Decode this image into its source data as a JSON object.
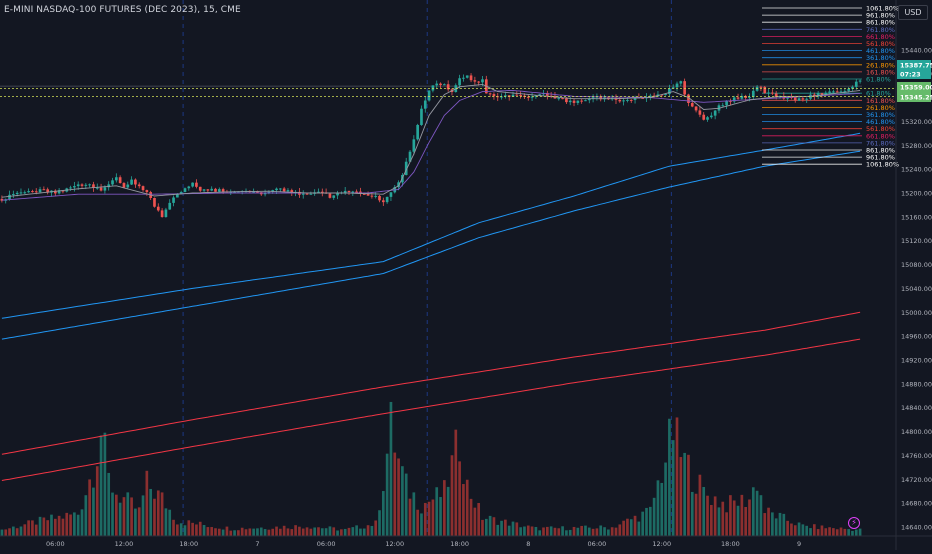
{
  "header": {
    "title": "E-MINI NASDAQ-100 FUTURES (DEC 2023), 15, CME",
    "currency": "USD"
  },
  "colors": {
    "background": "#131722",
    "grid_session": "#2962ff",
    "candle_up": "#26a69a",
    "candle_down": "#ef5350",
    "volume_up": "#1d6b64",
    "volume_down": "#8c2f2f",
    "ema_fast": "#9598a1",
    "ema_mid": "#7e57c2",
    "ma_blue": "#2196f3",
    "ma_red": "#f23645"
  },
  "chart_data": {
    "type": "candlestick",
    "y_axis_ticks": [
      "15440.00",
      "15400.00",
      "15360.00",
      "15320.00",
      "15280.00",
      "15240.00",
      "15200.00",
      "15160.00",
      "15120.00",
      "15080.00",
      "15040.00",
      "15000.00",
      "14960.00",
      "14920.00",
      "14880.00",
      "14840.00",
      "14800.00",
      "14760.00",
      "14720.00",
      "14680.00",
      "14640.00"
    ],
    "ylim": [
      14625,
      15490
    ],
    "x_axis_ticks": [
      "06:00",
      "12:00",
      "18:00",
      "7",
      "06:00",
      "12:00",
      "18:00",
      "8",
      "06:00",
      "12:00",
      "18:00",
      "9"
    ],
    "price_labels": [
      {
        "text": "15387.75",
        "color": "#26a69a"
      },
      {
        "text": "07:23",
        "color": "#26a69a"
      },
      {
        "text": "15359.00",
        "color": "#66bb6a"
      },
      {
        "text": "15345.25",
        "color": "#66bb6a"
      }
    ],
    "fib_levels": [
      {
        "label": "1061.80%",
        "color": "#ffffff"
      },
      {
        "label": "961.80%",
        "color": "#ffffff"
      },
      {
        "label": "861.80%",
        "color": "#ffffff"
      },
      {
        "label": "761.80%",
        "color": "#5c6bc0"
      },
      {
        "label": "661.80%",
        "color": "#e91e63"
      },
      {
        "label": "561.80%",
        "color": "#f44336"
      },
      {
        "label": "461.80%",
        "color": "#2196f3"
      },
      {
        "label": "361.80%",
        "color": "#2196f3"
      },
      {
        "label": "261.80%",
        "color": "#ff9800"
      },
      {
        "label": "161.80%",
        "color": "#ef5350"
      },
      {
        "label": "61.80%",
        "color": "#26a69a"
      },
      {
        "label": "0",
        "color": "#787b86"
      },
      {
        "label": "61.80%",
        "color": "#26a69a"
      },
      {
        "label": "161.80%",
        "color": "#ef5350"
      },
      {
        "label": "261.80%",
        "color": "#ff9800"
      },
      {
        "label": "361.80%",
        "color": "#2196f3"
      },
      {
        "label": "461.80%",
        "color": "#2196f3"
      },
      {
        "label": "561.80%",
        "color": "#f44336"
      },
      {
        "label": "661.80%",
        "color": "#e91e63"
      },
      {
        "label": "761.80%",
        "color": "#5c6bc0"
      },
      {
        "label": "861.80%",
        "color": "#ffffff"
      },
      {
        "label": "961.80%",
        "color": "#ffffff"
      },
      {
        "label": "1061.80%",
        "color": "#ffffff"
      }
    ],
    "price_path": [
      [
        0,
        15190
      ],
      [
        5,
        15200
      ],
      [
        10,
        15205
      ],
      [
        14,
        15200
      ],
      [
        18,
        15210
      ],
      [
        22,
        15215
      ],
      [
        26,
        15205
      ],
      [
        30,
        15225
      ],
      [
        32,
        15210
      ],
      [
        34,
        15220
      ],
      [
        38,
        15200
      ],
      [
        40,
        15180
      ],
      [
        42,
        15160
      ],
      [
        44,
        15185
      ],
      [
        46,
        15200
      ],
      [
        50,
        15215
      ],
      [
        52,
        15205
      ],
      [
        56,
        15205
      ],
      [
        60,
        15200
      ],
      [
        64,
        15205
      ],
      [
        68,
        15200
      ],
      [
        72,
        15208
      ],
      [
        76,
        15202
      ],
      [
        80,
        15198
      ],
      [
        84,
        15200
      ],
      [
        86,
        15192
      ],
      [
        90,
        15205
      ],
      [
        94,
        15200
      ],
      [
        98,
        15195
      ],
      [
        100,
        15185
      ],
      [
        102,
        15200
      ],
      [
        104,
        15215
      ],
      [
        106,
        15250
      ],
      [
        108,
        15290
      ],
      [
        110,
        15340
      ],
      [
        112,
        15370
      ],
      [
        114,
        15385
      ],
      [
        116,
        15380
      ],
      [
        118,
        15370
      ],
      [
        120,
        15390
      ],
      [
        122,
        15395
      ],
      [
        124,
        15385
      ],
      [
        126,
        15390
      ],
      [
        127,
        15365
      ],
      [
        130,
        15360
      ],
      [
        134,
        15362
      ],
      [
        138,
        15360
      ],
      [
        142,
        15365
      ],
      [
        146,
        15358
      ],
      [
        150,
        15352
      ],
      [
        154,
        15360
      ],
      [
        158,
        15358
      ],
      [
        162,
        15355
      ],
      [
        166,
        15360
      ],
      [
        170,
        15362
      ],
      [
        174,
        15365
      ],
      [
        176,
        15380
      ],
      [
        178,
        15385
      ],
      [
        180,
        15350
      ],
      [
        182,
        15340
      ],
      [
        184,
        15320
      ],
      [
        186,
        15330
      ],
      [
        188,
        15345
      ],
      [
        192,
        15358
      ],
      [
        196,
        15362
      ],
      [
        198,
        15380
      ],
      [
        200,
        15370
      ],
      [
        204,
        15360
      ],
      [
        208,
        15357
      ],
      [
        212,
        15362
      ],
      [
        216,
        15368
      ],
      [
        220,
        15372
      ],
      [
        222,
        15375
      ],
      [
        224,
        15385
      ],
      [
        225,
        15388
      ]
    ],
    "ema_fast": [
      [
        0,
        15193
      ],
      [
        10,
        15200
      ],
      [
        20,
        15207
      ],
      [
        30,
        15212
      ],
      [
        40,
        15195
      ],
      [
        50,
        15200
      ],
      [
        60,
        15202
      ],
      [
        70,
        15203
      ],
      [
        80,
        15200
      ],
      [
        90,
        15200
      ],
      [
        100,
        15198
      ],
      [
        104,
        15212
      ],
      [
        108,
        15265
      ],
      [
        112,
        15330
      ],
      [
        116,
        15365
      ],
      [
        120,
        15378
      ],
      [
        126,
        15382
      ],
      [
        130,
        15370
      ],
      [
        140,
        15364
      ],
      [
        150,
        15358
      ],
      [
        160,
        15358
      ],
      [
        170,
        15360
      ],
      [
        176,
        15370
      ],
      [
        180,
        15360
      ],
      [
        184,
        15340
      ],
      [
        188,
        15342
      ],
      [
        196,
        15356
      ],
      [
        204,
        15362
      ],
      [
        212,
        15362
      ],
      [
        220,
        15368
      ],
      [
        225,
        15372
      ]
    ],
    "ema_mid": [
      [
        0,
        15188
      ],
      [
        20,
        15198
      ],
      [
        40,
        15198
      ],
      [
        60,
        15200
      ],
      [
        80,
        15200
      ],
      [
        96,
        15200
      ],
      [
        104,
        15206
      ],
      [
        108,
        15235
      ],
      [
        112,
        15285
      ],
      [
        116,
        15330
      ],
      [
        120,
        15355
      ],
      [
        126,
        15370
      ],
      [
        134,
        15372
      ],
      [
        150,
        15362
      ],
      [
        170,
        15360
      ],
      [
        184,
        15352
      ],
      [
        200,
        15358
      ],
      [
        225,
        15367
      ]
    ],
    "ma_blue_1": [
      [
        0,
        14990
      ],
      [
        50,
        15040
      ],
      [
        100,
        15085
      ],
      [
        125,
        15150
      ],
      [
        150,
        15195
      ],
      [
        175,
        15245
      ],
      [
        200,
        15272
      ],
      [
        225,
        15300
      ]
    ],
    "ma_blue_2": [
      [
        0,
        14955
      ],
      [
        50,
        15010
      ],
      [
        100,
        15065
      ],
      [
        125,
        15125
      ],
      [
        150,
        15170
      ],
      [
        175,
        15210
      ],
      [
        200,
        15245
      ],
      [
        225,
        15270
      ]
    ],
    "ma_red_1": [
      [
        0,
        14762
      ],
      [
        50,
        14820
      ],
      [
        100,
        14875
      ],
      [
        150,
        14925
      ],
      [
        200,
        14970
      ],
      [
        225,
        15000
      ]
    ],
    "ma_red_2": [
      [
        0,
        14718
      ],
      [
        50,
        14775
      ],
      [
        100,
        14830
      ],
      [
        150,
        14882
      ],
      [
        200,
        14928
      ],
      [
        225,
        14955
      ]
    ],
    "volume_peaks": [
      [
        0,
        0.05
      ],
      [
        10,
        0.12
      ],
      [
        20,
        0.18
      ],
      [
        24,
        0.55
      ],
      [
        26,
        0.85
      ],
      [
        28,
        0.45
      ],
      [
        30,
        0.35
      ],
      [
        36,
        0.2
      ],
      [
        38,
        0.42
      ],
      [
        42,
        0.3
      ],
      [
        46,
        0.12
      ],
      [
        60,
        0.06
      ],
      [
        80,
        0.08
      ],
      [
        90,
        0.05
      ],
      [
        98,
        0.1
      ],
      [
        100,
        0.45
      ],
      [
        102,
        0.88
      ],
      [
        104,
        0.6
      ],
      [
        106,
        0.4
      ],
      [
        110,
        0.25
      ],
      [
        116,
        0.35
      ],
      [
        120,
        0.78
      ],
      [
        122,
        0.4
      ],
      [
        126,
        0.15
      ],
      [
        140,
        0.06
      ],
      [
        160,
        0.07
      ],
      [
        170,
        0.2
      ],
      [
        176,
        0.85
      ],
      [
        178,
        0.65
      ],
      [
        180,
        0.55
      ],
      [
        184,
        0.35
      ],
      [
        190,
        0.25
      ],
      [
        196,
        0.3
      ],
      [
        198,
        0.45
      ],
      [
        200,
        0.2
      ],
      [
        210,
        0.08
      ],
      [
        225,
        0.05
      ]
    ]
  }
}
